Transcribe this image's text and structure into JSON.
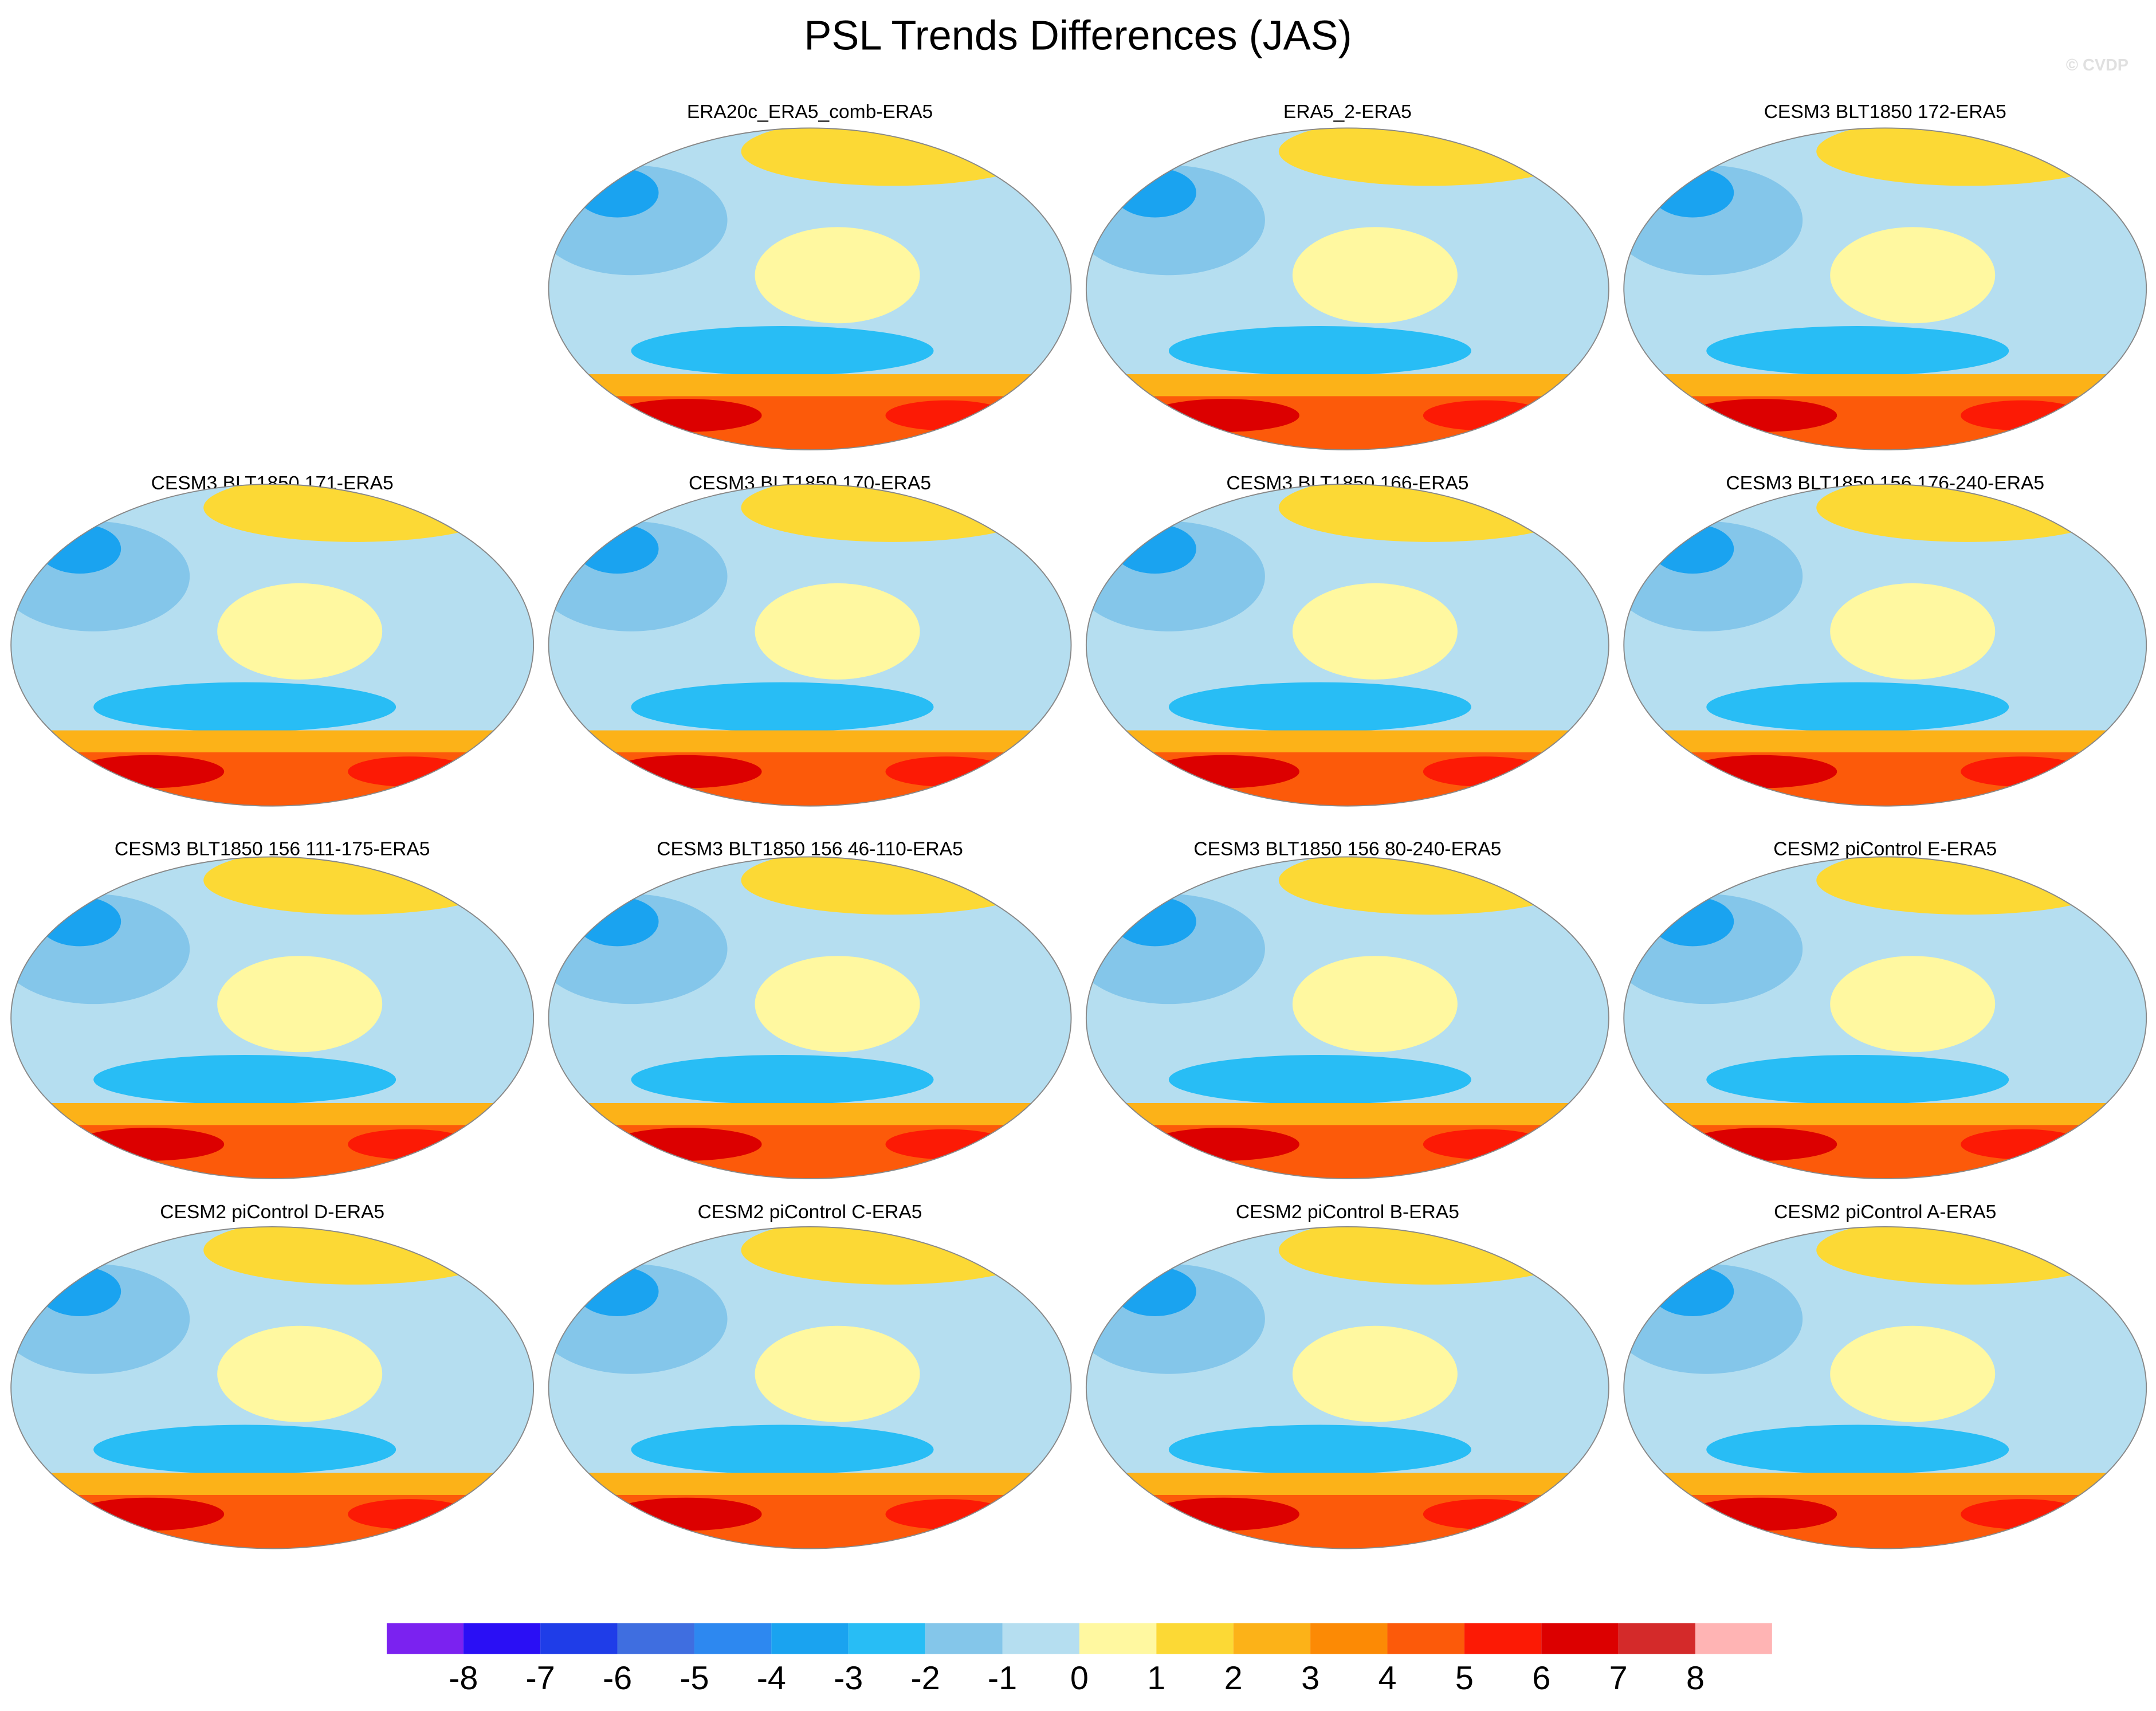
{
  "title": "PSL Trends Differences (JAS)",
  "watermark": "© CVDP",
  "panels": [
    {
      "title": "ERA20c_ERA5_comb-ERA5"
    },
    {
      "title": "ERA5_2-ERA5"
    },
    {
      "title": "CESM3 BLT1850 172-ERA5"
    },
    {
      "title": "CESM3 BLT1850 171-ERA5"
    },
    {
      "title": "CESM3 BLT1850 170-ERA5"
    },
    {
      "title": "CESM3 BLT1850 166-ERA5"
    },
    {
      "title": "CESM3 BLT1850 156 176-240-ERA5"
    },
    {
      "title": "CESM3 BLT1850 156 111-175-ERA5"
    },
    {
      "title": "CESM3 BLT1850 156 46-110-ERA5"
    },
    {
      "title": "CESM3 BLT1850 156 80-240-ERA5"
    },
    {
      "title": "CESM2 piControl E-ERA5"
    },
    {
      "title": "CESM2 piControl D-ERA5"
    },
    {
      "title": "CESM2 piControl C-ERA5"
    },
    {
      "title": "CESM2 piControl B-ERA5"
    },
    {
      "title": "CESM2 piControl A-ERA5"
    }
  ],
  "colorbar": {
    "levels": [
      -8,
      -7,
      -6,
      -5,
      -4,
      -3,
      -2,
      -1,
      0,
      1,
      2,
      3,
      4,
      5,
      6,
      7,
      8
    ],
    "colors": [
      "#7b22f0",
      "#2a0ff5",
      "#1f3de8",
      "#3f6ee0",
      "#2d88f0",
      "#1aa3f0",
      "#28bdf5",
      "#84c6ea",
      "#b5def0",
      "#fff8a0",
      "#fcd935",
      "#fcb218",
      "#fc8a05",
      "#fc5a0a",
      "#fc1a05",
      "#dc0000",
      "#d42a2a",
      "#ffb4b4"
    ]
  }
}
